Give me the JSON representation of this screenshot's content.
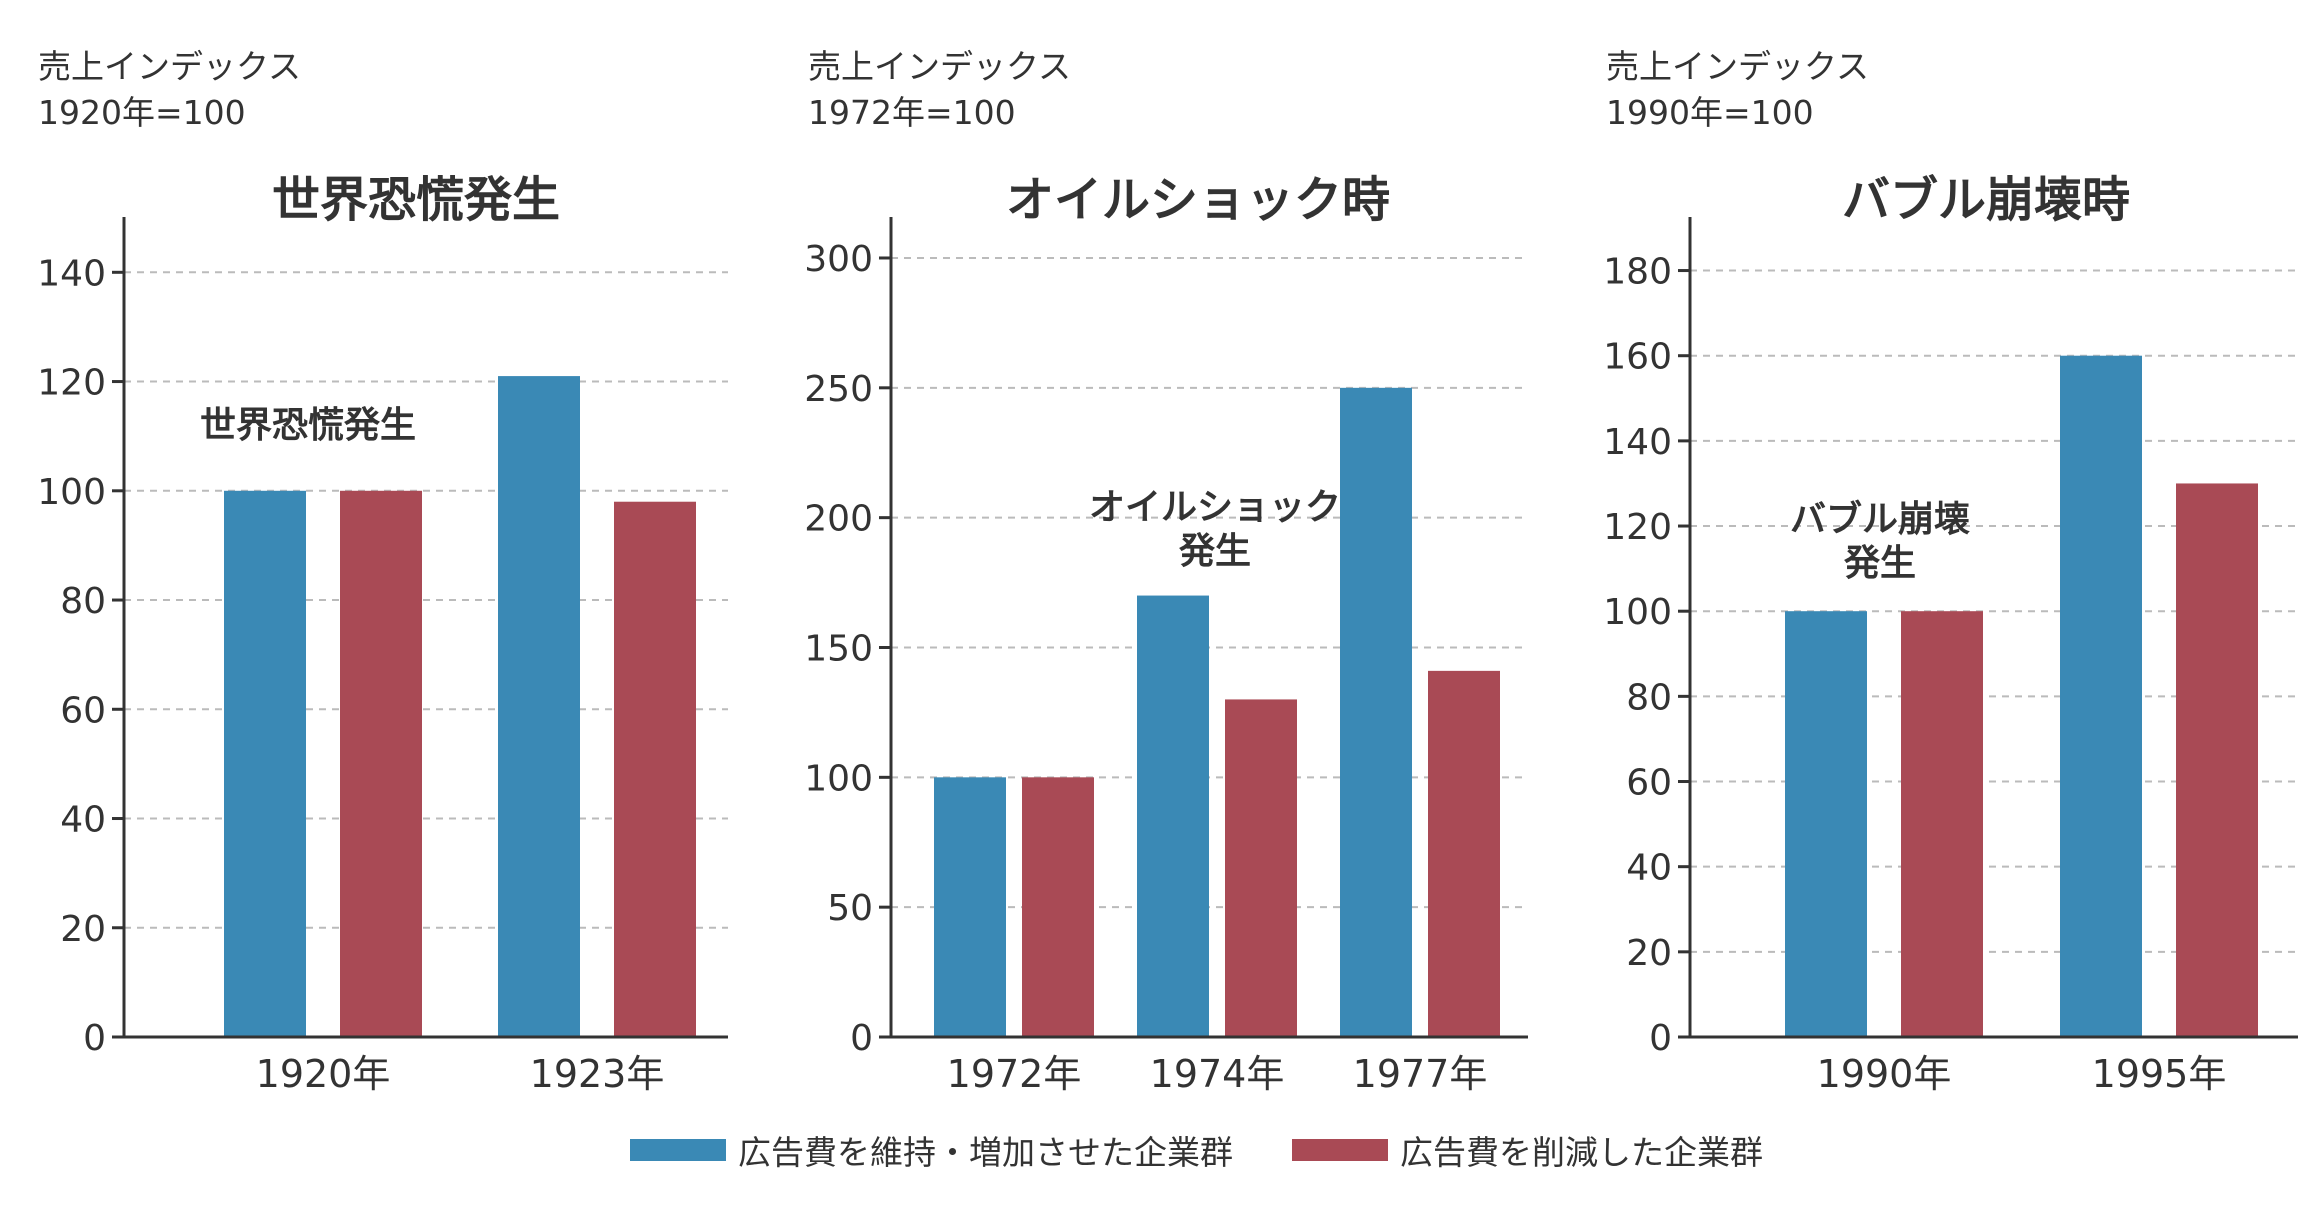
{
  "colors": {
    "series1": "#3a89b5",
    "series2": "#a94a55",
    "grid": "#bbbbbb",
    "axis": "#333333"
  },
  "legend": [
    {
      "label": "広告費を維持・増加させた企業群",
      "color": "#3a89b5"
    },
    {
      "label": "広告費を削減した企業群",
      "color": "#a94a55"
    }
  ],
  "chart_data": [
    {
      "type": "bar",
      "title": "世界恐慌発生",
      "index_label": "売上インデックス",
      "base_label": "1920年=100",
      "annotation": "世界恐慌発生",
      "categories": [
        "1920年",
        "1923年"
      ],
      "series": [
        {
          "name": "広告費を維持・増加させた企業群",
          "values": [
            100,
            121
          ]
        },
        {
          "name": "広告費を削減した企業群",
          "values": [
            100,
            98
          ]
        }
      ],
      "yticks": [
        0,
        20,
        40,
        60,
        80,
        100,
        120,
        140
      ],
      "ylim": [
        0,
        145
      ],
      "grid": true
    },
    {
      "type": "bar",
      "title": "オイルショック時",
      "index_label": "売上インデックス",
      "base_label": "1972年=100",
      "annotation": "オイルショック\n発生",
      "categories": [
        "1972年",
        "1974年",
        "1977年"
      ],
      "series": [
        {
          "name": "広告費を維持・増加させた企業群",
          "values": [
            100,
            170,
            250
          ]
        },
        {
          "name": "広告費を削減した企業群",
          "values": [
            100,
            130,
            141
          ]
        }
      ],
      "yticks": [
        0,
        50,
        100,
        150,
        200,
        250,
        300
      ],
      "ylim": [
        0,
        305
      ],
      "grid": true
    },
    {
      "type": "bar",
      "title": "バブル崩壊時",
      "index_label": "売上インデックス",
      "base_label": "1990年=100",
      "annotation": "バブル崩壊\n発生",
      "categories": [
        "1990年",
        "1995年"
      ],
      "series": [
        {
          "name": "広告費を維持・増加させた企業群",
          "values": [
            100,
            160
          ]
        },
        {
          "name": "広告費を削減した企業群",
          "values": [
            100,
            130
          ]
        }
      ],
      "yticks": [
        0,
        20,
        40,
        60,
        80,
        100,
        120,
        140,
        160,
        180
      ],
      "ylim": [
        0,
        186
      ],
      "grid": true
    }
  ]
}
